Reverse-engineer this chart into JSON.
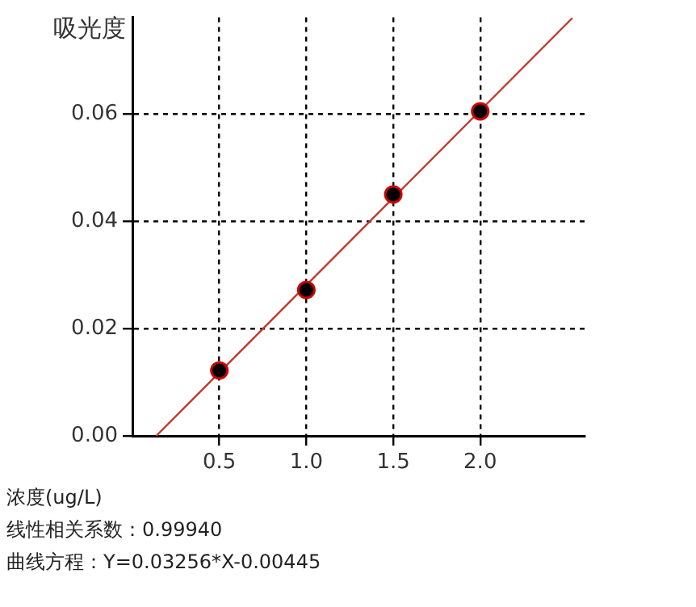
{
  "chart_data": {
    "type": "scatter",
    "ylabel": "吸光度",
    "xlabel": "浓度(ug/L)",
    "annotations": [
      "线性相关系数：0.99940",
      "曲线方程：Y=0.03256*X-0.00445"
    ],
    "xlim": [
      0,
      2.6
    ],
    "xticks": [
      0.5,
      {
        "value": 1,
        "label": "1.0"
      },
      1.5,
      {
        "value": 2,
        "label": "2.0"
      }
    ],
    "ylim": [
      0,
      0.078
    ],
    "yticks": [
      {
        "value": 0,
        "label": "0.00"
      },
      0.02,
      0.04,
      0.06
    ],
    "grid": true,
    "legend": false,
    "marker": "circle",
    "series": [
      {
        "type": "line",
        "color": "#c0392b",
        "x": [
          0.137,
          2.53
        ],
        "values": [
          0,
          0.0779
        ],
        "line_style": "solid",
        "marker": "none"
      },
      {
        "type": "scatter",
        "color": "#000000",
        "x": [
          0.5,
          1.0,
          1.5,
          2.0
        ],
        "values": [
          0.0122,
          0.0272,
          0.045,
          0.0605
        ]
      }
    ]
  }
}
